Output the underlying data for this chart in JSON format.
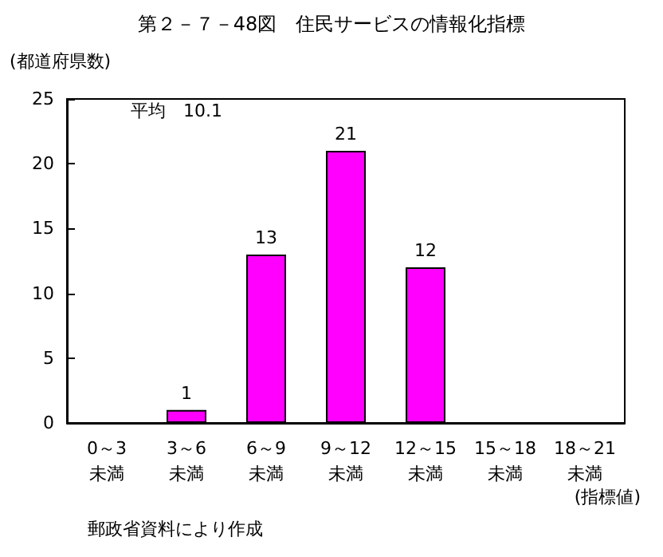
{
  "chart_data": {
    "type": "bar",
    "title": "第２－７－48図　住民サービスの情報化指標",
    "ylabel": "(都道府県数)",
    "xlabel": "(指標値)",
    "categories": [
      "0～3\n未満",
      "3～6\n未満",
      "6～9\n未満",
      "9～12\n未満",
      "12～15\n未満",
      "15～18\n未満",
      "18～21\n未満"
    ],
    "values": [
      0,
      1,
      13,
      21,
      12,
      0,
      0
    ],
    "value_labels": [
      null,
      "1",
      "13",
      "21",
      "12",
      null,
      null
    ],
    "color": "#ff00ff",
    "ylim": [
      0,
      25
    ],
    "yticks": [
      0,
      5,
      10,
      15,
      20,
      25
    ],
    "grid": false,
    "annotations": [
      "平均　10.1",
      "郵政省資料により作成"
    ]
  }
}
